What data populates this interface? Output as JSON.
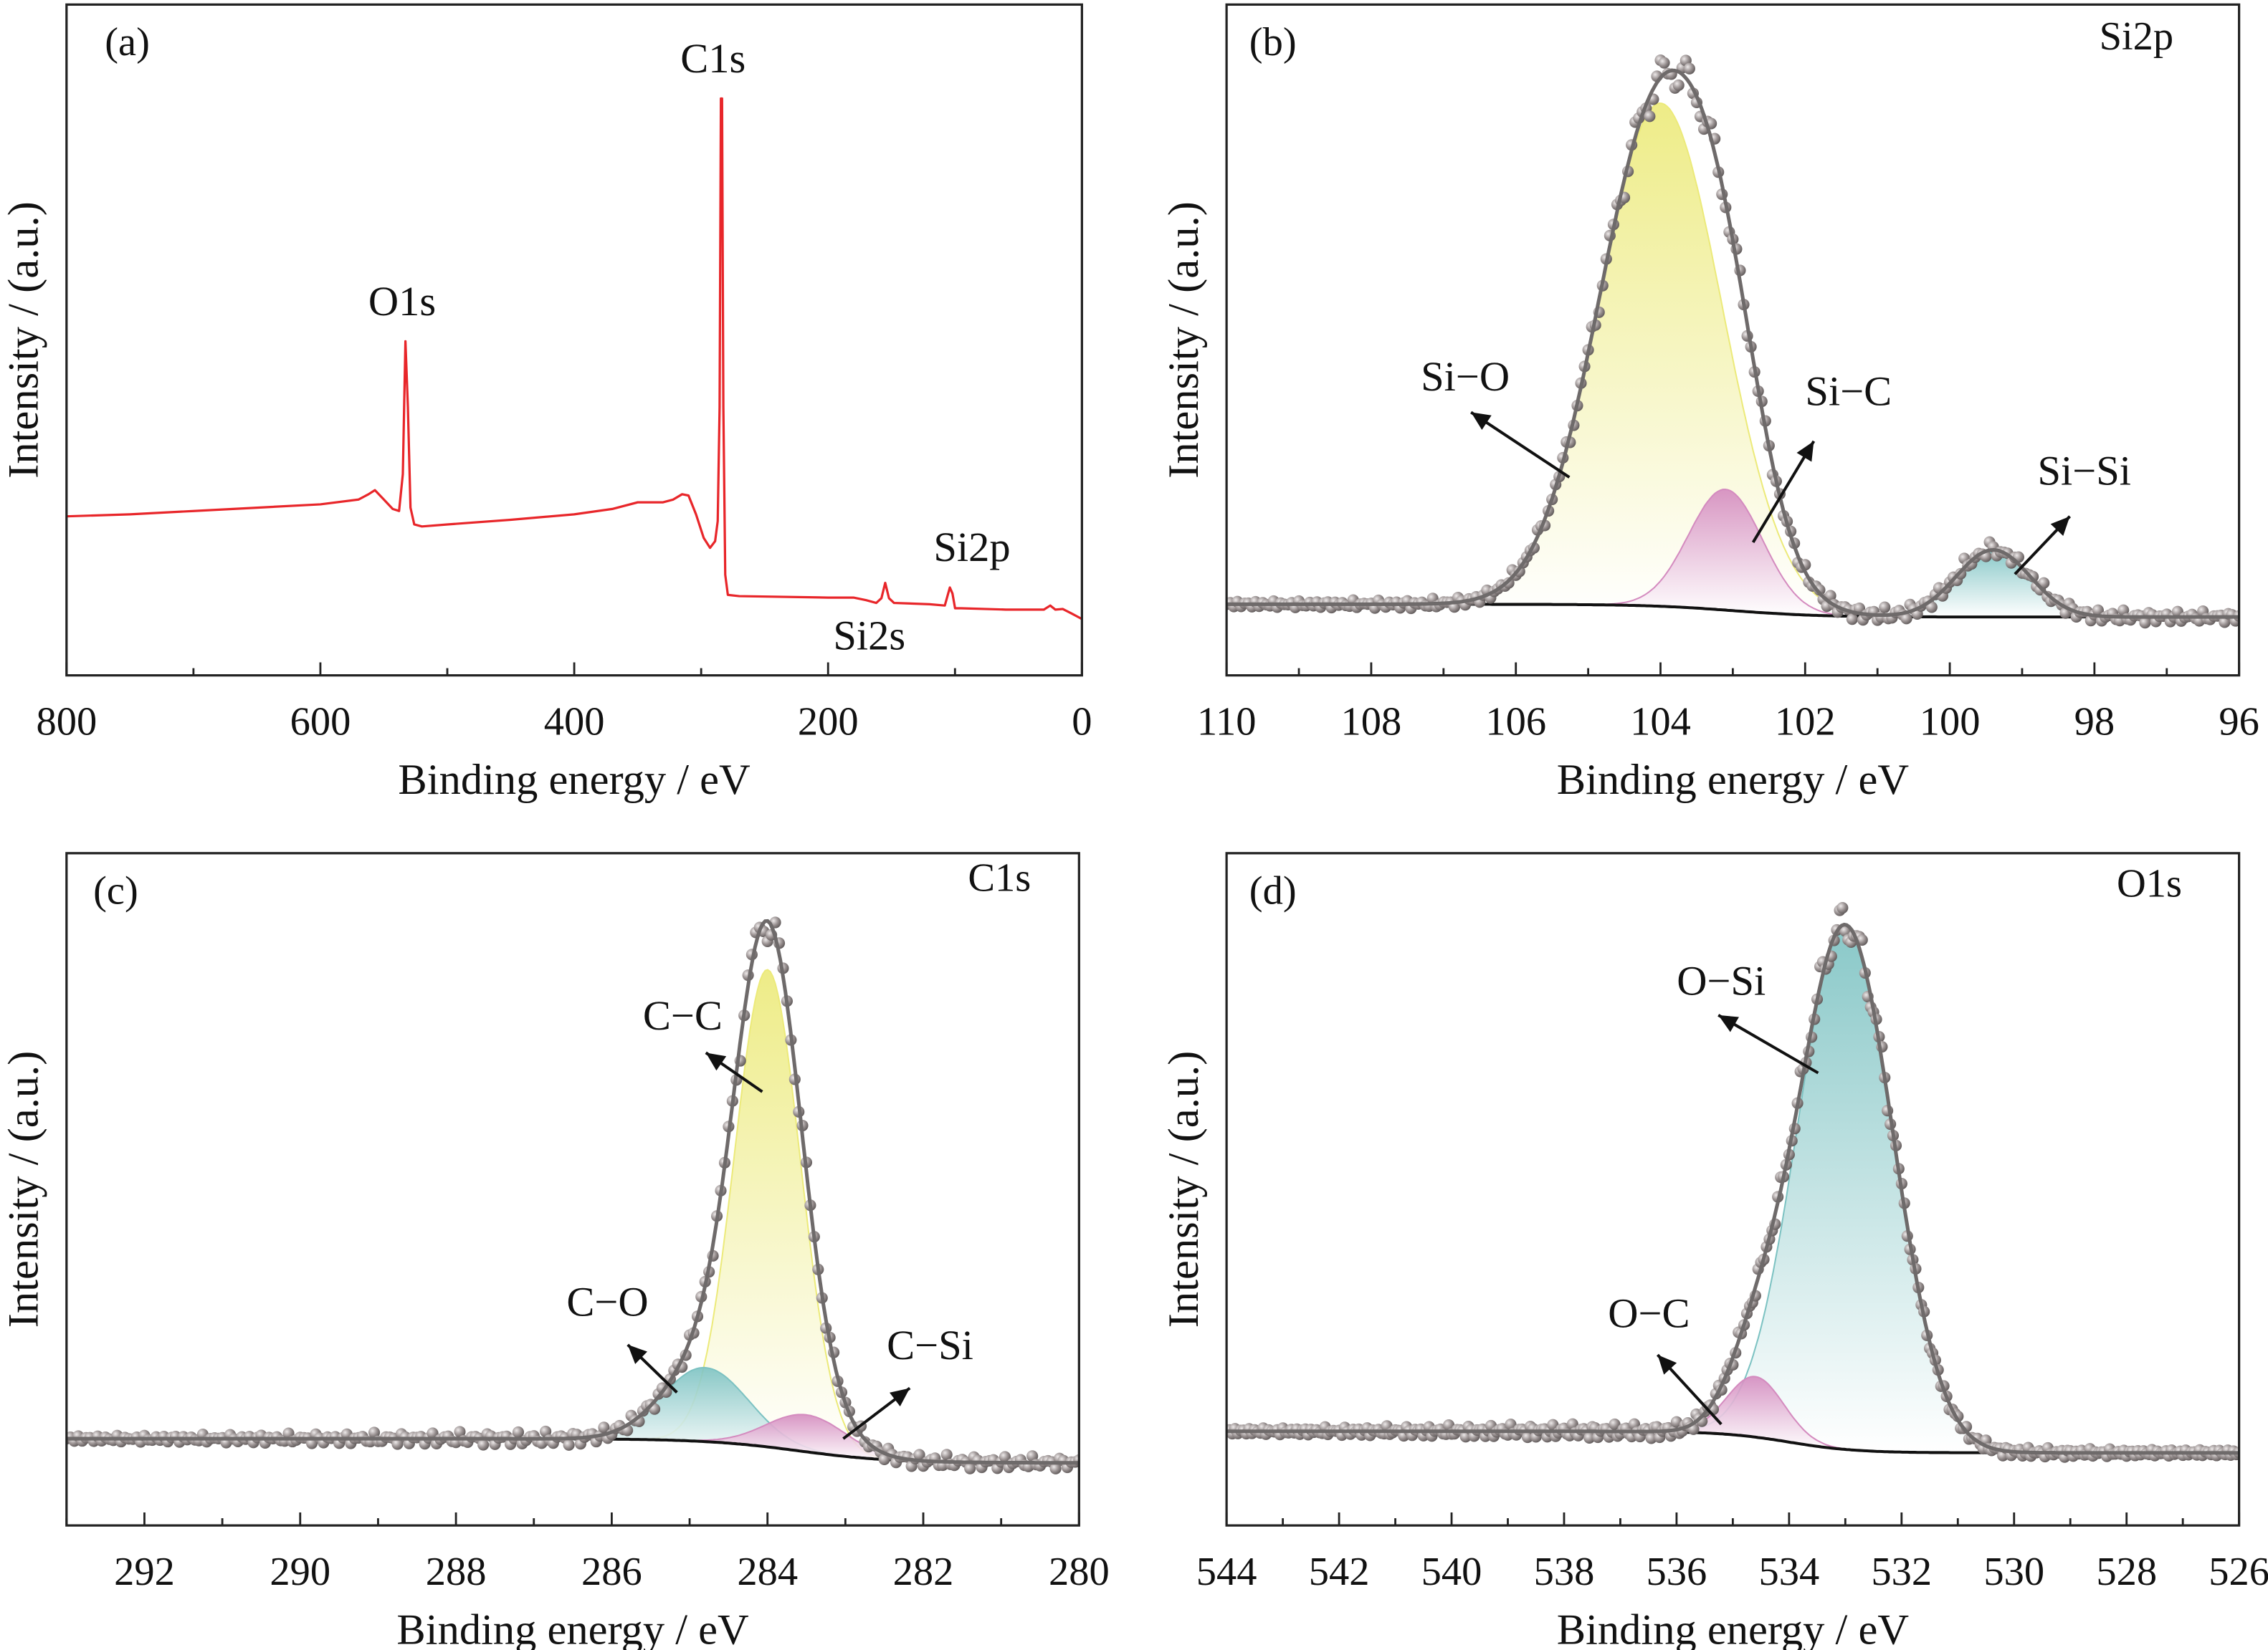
{
  "chart_data": [
    {
      "panel_label": "(a)",
      "type": "line",
      "xlabel": "Binding energy / eV",
      "ylabel": "Intensity / (a.u.)",
      "xlim": [
        800,
        0
      ],
      "ylim": [
        0,
        1
      ],
      "xticks": [
        800,
        600,
        400,
        200,
        0
      ],
      "x_minor_step": 100,
      "x_reversed": true,
      "grid": false,
      "line_color": "#e8262a",
      "series": [
        {
          "points": [
            [
              800,
              0.237
            ],
            [
              750,
              0.24
            ],
            [
              700,
              0.245
            ],
            [
              650,
              0.25
            ],
            [
              600,
              0.255
            ],
            [
              570,
              0.262
            ],
            [
              562,
              0.27
            ],
            [
              557,
              0.276
            ],
            [
              550,
              0.262
            ],
            [
              543,
              0.248
            ],
            [
              538,
              0.245
            ],
            [
              535,
              0.3
            ],
            [
              533,
              0.498
            ],
            [
              531,
              0.4
            ],
            [
              529,
              0.25
            ],
            [
              526,
              0.225
            ],
            [
              520,
              0.222
            ],
            [
              500,
              0.225
            ],
            [
              450,
              0.232
            ],
            [
              400,
              0.24
            ],
            [
              370,
              0.248
            ],
            [
              350,
              0.258
            ],
            [
              330,
              0.258
            ],
            [
              322,
              0.262
            ],
            [
              315,
              0.27
            ],
            [
              310,
              0.268
            ],
            [
              304,
              0.24
            ],
            [
              298,
              0.205
            ],
            [
              293,
              0.19
            ],
            [
              289,
              0.2
            ],
            [
              287,
              0.23
            ],
            [
              285.5,
              0.4
            ],
            [
              284.5,
              0.86
            ],
            [
              283.5,
              0.86
            ],
            [
              282.5,
              0.4
            ],
            [
              281,
              0.15
            ],
            [
              279,
              0.12
            ],
            [
              270,
              0.118
            ],
            [
              200,
              0.116
            ],
            [
              180,
              0.116
            ],
            [
              170,
              0.112
            ],
            [
              162,
              0.108
            ],
            [
              158,
              0.115
            ],
            [
              155,
              0.138
            ],
            [
              152,
              0.115
            ],
            [
              148,
              0.108
            ],
            [
              120,
              0.106
            ],
            [
              108,
              0.104
            ],
            [
              104,
              0.131
            ],
            [
              102,
              0.122
            ],
            [
              100,
              0.1
            ],
            [
              95,
              0.1
            ],
            [
              60,
              0.098
            ],
            [
              30,
              0.098
            ],
            [
              25,
              0.104
            ],
            [
              21,
              0.098
            ],
            [
              15,
              0.099
            ],
            [
              8,
              0.092
            ],
            [
              0,
              0.084
            ]
          ]
        }
      ],
      "annotations": [
        "O1s",
        "C1s",
        "Si2p",
        "Si2s"
      ]
    },
    {
      "panel_label": "(b)",
      "title": "Si2p",
      "type": "area",
      "xlabel": "Binding energy / eV",
      "ylabel": "Intensity / (a.u.)",
      "xlim": [
        110,
        96
      ],
      "ylim": [
        0,
        1
      ],
      "xticks": [
        110,
        108,
        106,
        104,
        102,
        100,
        98,
        96
      ],
      "x_minor_step": 1,
      "x_reversed": true,
      "background": {
        "left": 0.106,
        "right": 0.087,
        "step_center": 103.0,
        "color": "#111111"
      },
      "components": [
        {
          "name": "Si−O",
          "center": 104.0,
          "height": 0.75,
          "fwhm": 2.0,
          "color": "#ecea7a"
        },
        {
          "name": "Si−C",
          "center": 103.1,
          "height": 0.18,
          "fwhm": 1.2,
          "color": "#d48bbf"
        },
        {
          "name": "Si−Si",
          "center": 99.4,
          "height": 0.1,
          "fwhm": 1.2,
          "color": "#7cc2c2"
        }
      ],
      "envelope_color": "#6e6a6a",
      "points_color": "#8c8484"
    },
    {
      "panel_label": "(c)",
      "title": "C1s",
      "type": "area",
      "xlabel": "Binding energy / eV",
      "ylabel": "Intensity / (a.u.)",
      "xlim": [
        293,
        280
      ],
      "ylim": [
        0,
        1
      ],
      "xticks": [
        292,
        290,
        288,
        286,
        284,
        282,
        280
      ],
      "x_minor_step": 1,
      "x_reversed": true,
      "background": {
        "left": 0.129,
        "right": 0.093,
        "step_center": 283.6,
        "color": "#111111"
      },
      "components": [
        {
          "name": "C−C",
          "center": 284.0,
          "height": 0.71,
          "fwhm": 1.0,
          "color": "#ecea7a"
        },
        {
          "name": "C−O",
          "center": 284.8,
          "height": 0.11,
          "fwhm": 1.3,
          "color": "#7cc2c2"
        },
        {
          "name": "C−Si",
          "center": 283.5,
          "height": 0.055,
          "fwhm": 1.2,
          "color": "#d48bbf"
        }
      ],
      "envelope_color": "#6e6a6a",
      "points_color": "#8c8484"
    },
    {
      "panel_label": "(d)",
      "title": "O1s",
      "type": "area",
      "xlabel": "Binding energy / eV",
      "ylabel": "Intensity / (a.u.)",
      "xlim": [
        544,
        526
      ],
      "ylim": [
        0,
        1
      ],
      "xticks": [
        544,
        542,
        540,
        538,
        536,
        534,
        532,
        530,
        528,
        526
      ],
      "x_minor_step": 1,
      "x_reversed": true,
      "background": {
        "left": 0.14,
        "right": 0.108,
        "step_center": 534.0,
        "color": "#111111"
      },
      "components": [
        {
          "name": "O−Si",
          "center": 533.0,
          "height": 0.78,
          "fwhm": 2.0,
          "color": "#7cc2c2"
        },
        {
          "name": "O−C",
          "center": 534.6,
          "height": 0.09,
          "fwhm": 1.2,
          "color": "#d48bbf"
        }
      ],
      "envelope_color": "#6e6a6a",
      "points_color": "#8c8484"
    }
  ]
}
